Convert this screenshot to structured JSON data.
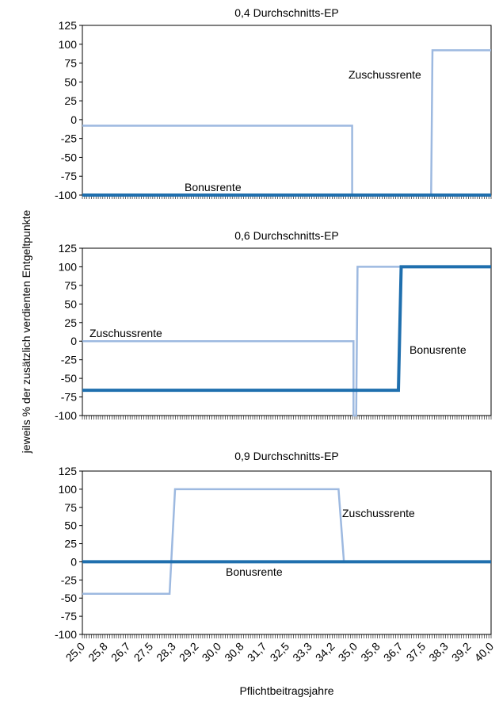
{
  "figure": {
    "ylabel": "jeweils % der zusätzlich verdienten Entgeltpunkte",
    "xlabel": "Pflichtbeitragsjahre"
  },
  "colors": {
    "zuschussrente": "#9db9e0",
    "bonusrente": "#1f6fae",
    "axis": "#000000"
  },
  "chart_data": [
    {
      "type": "line",
      "title": "0,4 Durchschnitts-EP",
      "x_range": [
        25.0,
        40.0
      ],
      "ylim": [
        -100,
        125
      ],
      "yticks": [
        "125",
        "100",
        "75",
        "50",
        "25",
        "0",
        "-25",
        "-50",
        "-75",
        "-100"
      ],
      "xticks": [],
      "grid": false,
      "series": [
        {
          "name": "Zuschussrente",
          "points": [
            [
              25.0,
              -8
            ],
            [
              34.9,
              -8
            ],
            [
              34.9,
              -100
            ],
            [
              37.8,
              -100
            ],
            [
              37.85,
              92
            ],
            [
              40.0,
              92
            ]
          ]
        },
        {
          "name": "Bonusrente",
          "points": [
            [
              25.0,
              -100
            ],
            [
              40.0,
              -100
            ]
          ]
        }
      ]
    },
    {
      "type": "line",
      "title": "0,6 Durchschnitts-EP",
      "x_range": [
        25.0,
        40.0
      ],
      "ylim": [
        -100,
        125
      ],
      "yticks": [
        "125",
        "100",
        "75",
        "50",
        "25",
        "0",
        "-25",
        "-50",
        "-75",
        "-100"
      ],
      "xticks": [],
      "grid": false,
      "series": [
        {
          "name": "Zuschussrente",
          "points": [
            [
              25.0,
              0
            ],
            [
              34.95,
              0
            ],
            [
              34.95,
              -100
            ],
            [
              35.05,
              -100
            ],
            [
              35.1,
              100
            ],
            [
              40.0,
              100
            ]
          ]
        },
        {
          "name": "Bonusrente",
          "points": [
            [
              25.0,
              -66
            ],
            [
              36.6,
              -66
            ],
            [
              36.7,
              100
            ],
            [
              40.0,
              100
            ]
          ]
        }
      ]
    },
    {
      "type": "line",
      "title": "0,9 Durchschnitts-EP",
      "x_range": [
        25.0,
        40.0
      ],
      "ylim": [
        -100,
        125
      ],
      "yticks": [
        "125",
        "100",
        "75",
        "50",
        "25",
        "0",
        "-25",
        "-50",
        "-75",
        "-100"
      ],
      "xticks": [
        "25,0",
        "25,8",
        "26,7",
        "27,5",
        "28,3",
        "29,2",
        "30,0",
        "30,8",
        "31,7",
        "32,5",
        "33,3",
        "34,2",
        "35,0",
        "35,8",
        "36,7",
        "37,5",
        "38,3",
        "39,2",
        "40,0"
      ],
      "grid": false,
      "series": [
        {
          "name": "Zuschussrente",
          "points": [
            [
              25.0,
              -44
            ],
            [
              28.2,
              -44
            ],
            [
              28.4,
              100
            ],
            [
              34.4,
              100
            ],
            [
              34.6,
              0
            ],
            [
              40.0,
              0
            ]
          ]
        },
        {
          "name": "Bonusrente",
          "points": [
            [
              25.0,
              0
            ],
            [
              40.0,
              0
            ]
          ]
        }
      ]
    }
  ]
}
